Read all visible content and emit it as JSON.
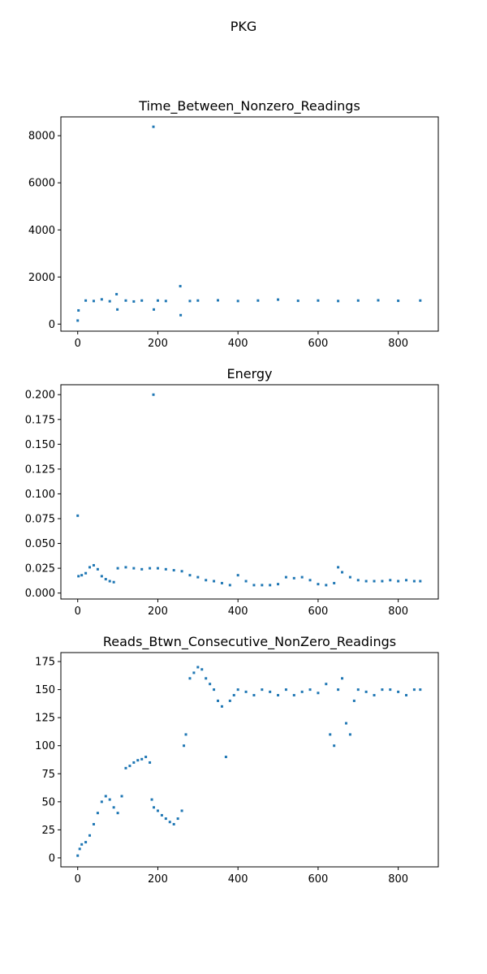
{
  "figure_title": "PKG",
  "colors": {
    "marker": "#1f77b4",
    "axes": "#000000",
    "background": "#ffffff"
  },
  "chart_data": [
    {
      "type": "scatter",
      "title": "Time_Between_Nonzero_Readings",
      "xlabel": "",
      "ylabel": "",
      "xlim": [
        -42,
        900
      ],
      "ylim": [
        -300,
        8800
      ],
      "xticks": [
        0,
        200,
        400,
        600,
        800
      ],
      "yticks": [
        0,
        2000,
        4000,
        6000,
        8000
      ],
      "grid": false,
      "legend": "none",
      "series": [
        {
          "x": [
            0,
            2,
            20,
            40,
            60,
            80,
            97,
            99,
            120,
            140,
            160,
            189,
            190,
            200,
            220,
            256,
            257,
            280,
            300,
            350,
            400,
            450,
            500,
            550,
            600,
            650,
            700,
            750,
            800,
            855
          ],
          "y": [
            150,
            580,
            1000,
            980,
            1050,
            970,
            1270,
            620,
            1000,
            960,
            1000,
            8380,
            620,
            1000,
            980,
            1610,
            380,
            980,
            1000,
            1010,
            980,
            1000,
            1040,
            990,
            1000,
            980,
            1000,
            1010,
            990,
            1000
          ]
        }
      ]
    },
    {
      "type": "scatter",
      "title": "Energy",
      "xlabel": "",
      "ylabel": "",
      "xlim": [
        -42,
        900
      ],
      "ylim": [
        -0.006,
        0.21
      ],
      "xticks": [
        0,
        200,
        400,
        600,
        800
      ],
      "yticks": [
        0.0,
        0.025,
        0.05,
        0.075,
        0.1,
        0.125,
        0.15,
        0.175,
        0.2
      ],
      "ytick_labels": [
        "0.000",
        "0.025",
        "0.050",
        "0.075",
        "0.100",
        "0.125",
        "0.150",
        "0.175",
        "0.200"
      ],
      "grid": false,
      "legend": "none",
      "series": [
        {
          "x": [
            0,
            2,
            10,
            20,
            30,
            40,
            50,
            60,
            70,
            80,
            90,
            100,
            120,
            140,
            160,
            180,
            189,
            200,
            220,
            240,
            260,
            280,
            300,
            320,
            340,
            360,
            380,
            400,
            420,
            440,
            460,
            480,
            500,
            520,
            540,
            560,
            580,
            600,
            620,
            640,
            650,
            660,
            680,
            700,
            720,
            740,
            760,
            780,
            800,
            820,
            840,
            855
          ],
          "y": [
            0.078,
            0.017,
            0.018,
            0.02,
            0.026,
            0.028,
            0.024,
            0.017,
            0.014,
            0.012,
            0.011,
            0.025,
            0.026,
            0.025,
            0.024,
            0.025,
            0.2,
            0.025,
            0.024,
            0.023,
            0.022,
            0.018,
            0.016,
            0.013,
            0.012,
            0.01,
            0.008,
            0.018,
            0.012,
            0.008,
            0.008,
            0.008,
            0.009,
            0.016,
            0.015,
            0.016,
            0.013,
            0.009,
            0.008,
            0.01,
            0.026,
            0.021,
            0.016,
            0.013,
            0.012,
            0.012,
            0.012,
            0.013,
            0.012,
            0.013,
            0.012,
            0.012
          ]
        }
      ]
    },
    {
      "type": "scatter",
      "title": "Reads_Btwn_Consecutive_NonZero_Readings",
      "xlabel": "",
      "ylabel": "",
      "xlim": [
        -42,
        900
      ],
      "ylim": [
        -8,
        183
      ],
      "xticks": [
        0,
        200,
        400,
        600,
        800
      ],
      "yticks": [
        0,
        25,
        50,
        75,
        100,
        125,
        150,
        175
      ],
      "grid": false,
      "legend": "none",
      "series": [
        {
          "x": [
            0,
            5,
            10,
            20,
            30,
            40,
            50,
            60,
            70,
            80,
            90,
            100,
            110,
            120,
            130,
            140,
            150,
            160,
            170,
            180,
            185,
            190,
            200,
            210,
            220,
            230,
            240,
            250,
            260,
            265,
            270,
            280,
            290,
            300,
            310,
            320,
            330,
            340,
            350,
            360,
            370,
            380,
            390,
            400,
            420,
            440,
            460,
            480,
            500,
            520,
            540,
            560,
            580,
            600,
            620,
            630,
            640,
            650,
            660,
            670,
            680,
            690,
            700,
            720,
            740,
            760,
            780,
            800,
            820,
            840,
            855
          ],
          "y": [
            2,
            8,
            12,
            14,
            20,
            30,
            40,
            50,
            55,
            52,
            45,
            40,
            55,
            80,
            82,
            85,
            87,
            88,
            90,
            85,
            52,
            45,
            42,
            38,
            35,
            32,
            30,
            35,
            42,
            100,
            110,
            160,
            165,
            170,
            168,
            160,
            155,
            150,
            140,
            135,
            90,
            140,
            145,
            150,
            148,
            145,
            150,
            148,
            145,
            150,
            145,
            148,
            150,
            147,
            155,
            110,
            100,
            150,
            160,
            120,
            110,
            140,
            150,
            148,
            145,
            150,
            150,
            148,
            145,
            150,
            150
          ]
        }
      ]
    }
  ]
}
